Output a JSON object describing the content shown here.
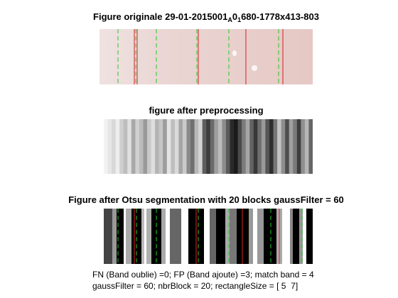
{
  "figure_title_1_prefix": "Figure originale 29-01-2015001",
  "figure_title_1_sub_a": "A",
  "figure_title_1_mid": "0",
  "figure_title_1_sub_b": "1",
  "figure_title_1_suffix": "680-1778x413-803",
  "figure_title_2": "figure after preprocessing",
  "figure_title_3": "Figure after Otsu segmentation with 20 blocks gaussFilter = 60",
  "caption_line_1": "FN (Band oublie) =0; FP (Band ajoute) =3; match band = 4",
  "caption_line_2": "gaussFilter = 60; nbrBlock = 20; rectangleSize = [ 5  7]",
  "colors": {
    "green_band": "#22cc22",
    "red_band": "#dd2222",
    "tissue": "#ead4d2"
  }
}
